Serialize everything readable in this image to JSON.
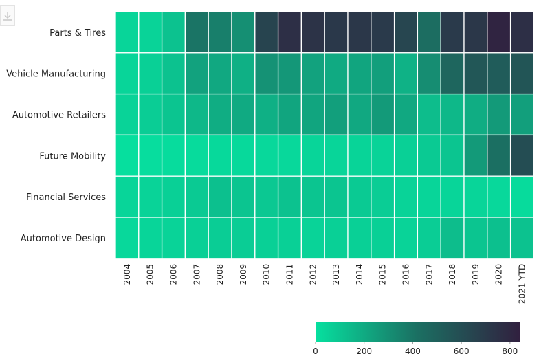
{
  "toolbar": {
    "download_icon": "download-icon"
  },
  "chart_data": {
    "type": "heatmap",
    "title": "",
    "xlabel": "",
    "ylabel": "",
    "rows": [
      "Parts & Tires",
      "Vehicle Manufacturing",
      "Automotive Retailers",
      "Future Mobility",
      "Financial Services",
      "Automotive Design"
    ],
    "columns": [
      "2004",
      "2005",
      "2006",
      "2007",
      "2008",
      "2009",
      "2010",
      "2011",
      "2012",
      "2013",
      "2014",
      "2015",
      "2016",
      "2017",
      "2018",
      "2019",
      "2020",
      "2021 YTD"
    ],
    "values": [
      [
        40,
        50,
        110,
        400,
        360,
        300,
        650,
        760,
        740,
        710,
        720,
        700,
        640,
        430,
        700,
        720,
        820,
        760
      ],
      [
        40,
        60,
        110,
        230,
        210,
        180,
        290,
        270,
        230,
        200,
        220,
        240,
        170,
        310,
        470,
        550,
        520,
        560
      ],
      [
        50,
        70,
        100,
        150,
        190,
        200,
        180,
        220,
        220,
        240,
        210,
        260,
        210,
        130,
        150,
        190,
        260,
        240
      ],
      [
        5,
        10,
        15,
        20,
        25,
        25,
        30,
        30,
        40,
        40,
        45,
        50,
        60,
        80,
        100,
        260,
        420,
        600
      ],
      [
        40,
        50,
        60,
        80,
        120,
        100,
        90,
        110,
        100,
        100,
        80,
        70,
        50,
        40,
        40,
        40,
        30,
        20
      ],
      [
        30,
        40,
        50,
        60,
        70,
        70,
        60,
        60,
        50,
        60,
        60,
        60,
        50,
        70,
        130,
        100,
        120,
        110
      ]
    ],
    "colorscale": {
      "min": 0,
      "max": 840,
      "low_color": "#06e09f",
      "mid_color": "#1b6f62",
      "high_color": "#31203f"
    },
    "colorbar_ticks": [
      0,
      200,
      400,
      600,
      800
    ],
    "grid": true
  }
}
